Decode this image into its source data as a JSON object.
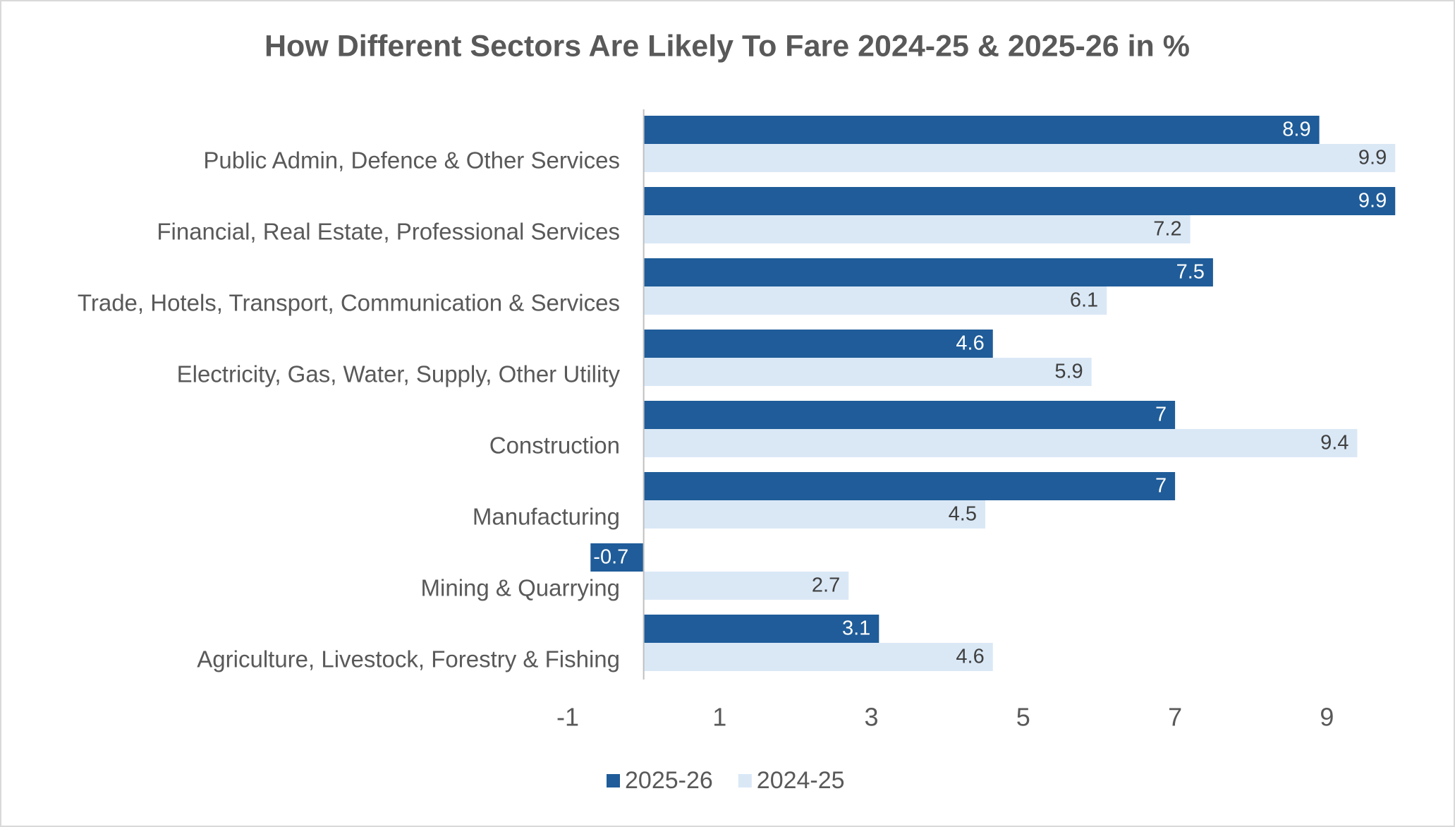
{
  "chart_data": {
    "type": "bar",
    "orientation": "horizontal",
    "title": "How Different Sectors Are Likely To Fare 2024-25 & 2025-26 in %",
    "categories": [
      "Public Admin, Defence & Other Services",
      "Financial, Real Estate, Professional Services",
      "Trade, Hotels, Transport, Communication & Services",
      "Electricity, Gas, Water, Supply, Other Utility",
      "Construction",
      "Manufacturing",
      "Mining & Quarrying",
      "Agriculture, Livestock, Forestry & Fishing"
    ],
    "series": [
      {
        "name": "2025-26",
        "color": "#1f5c99",
        "values": [
          8.9,
          9.9,
          7.5,
          4.6,
          7,
          7,
          -0.7,
          3.1
        ]
      },
      {
        "name": "2024-25",
        "color": "#dae8f6",
        "values": [
          9.9,
          7.2,
          6.1,
          5.9,
          9.4,
          4.5,
          2.7,
          4.6
        ]
      }
    ],
    "xlim": [
      -1,
      10
    ],
    "xticks": [
      -1,
      1,
      3,
      5,
      7,
      9
    ],
    "grid": false,
    "legend": "bottom"
  }
}
